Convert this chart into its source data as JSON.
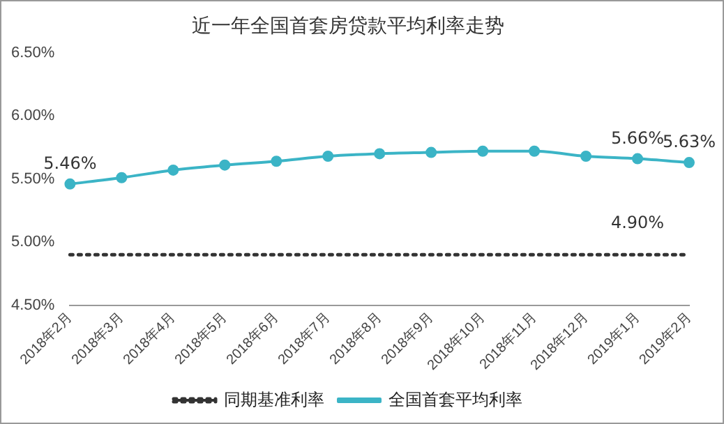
{
  "chart_data": {
    "type": "line",
    "title": "近一年全国首套房贷款平均利率走势",
    "categories": [
      "2018年2月",
      "2018年3月",
      "2018年4月",
      "2018年5月",
      "2018年6月",
      "2018年7月",
      "2018年8月",
      "2018年9月",
      "2018年10月",
      "2018年11月",
      "2018年12月",
      "2019年1月",
      "2019年2月"
    ],
    "series": [
      {
        "name": "同期基准利率",
        "color": "#333333",
        "line_style": "dotted",
        "marker": "none",
        "values": [
          4.9,
          4.9,
          4.9,
          4.9,
          4.9,
          4.9,
          4.9,
          4.9,
          4.9,
          4.9,
          4.9,
          4.9,
          4.9
        ],
        "value_labels": [
          null,
          null,
          null,
          null,
          null,
          null,
          null,
          null,
          null,
          null,
          null,
          "4.90%",
          null
        ]
      },
      {
        "name": "全国首套平均利率",
        "color": "#3bb4c6",
        "line_style": "solid",
        "marker": "circle",
        "values": [
          5.46,
          5.51,
          5.57,
          5.61,
          5.64,
          5.68,
          5.7,
          5.71,
          5.72,
          5.72,
          5.68,
          5.66,
          5.63
        ],
        "value_labels": [
          "5.46%",
          null,
          null,
          null,
          null,
          null,
          null,
          null,
          null,
          null,
          null,
          "5.66%",
          "5.63%"
        ]
      }
    ],
    "ylim": [
      4.5,
      6.5
    ],
    "yticks": [
      {
        "value": 4.5,
        "label": "4.50%"
      },
      {
        "value": 5,
        "label": "5.00%"
      },
      {
        "value": 5.5,
        "label": "5.50%"
      },
      {
        "value": 6,
        "label": "6.00%"
      },
      {
        "value": 6.5,
        "label": "6.50%"
      }
    ],
    "grid": false,
    "legend": "bottom"
  }
}
